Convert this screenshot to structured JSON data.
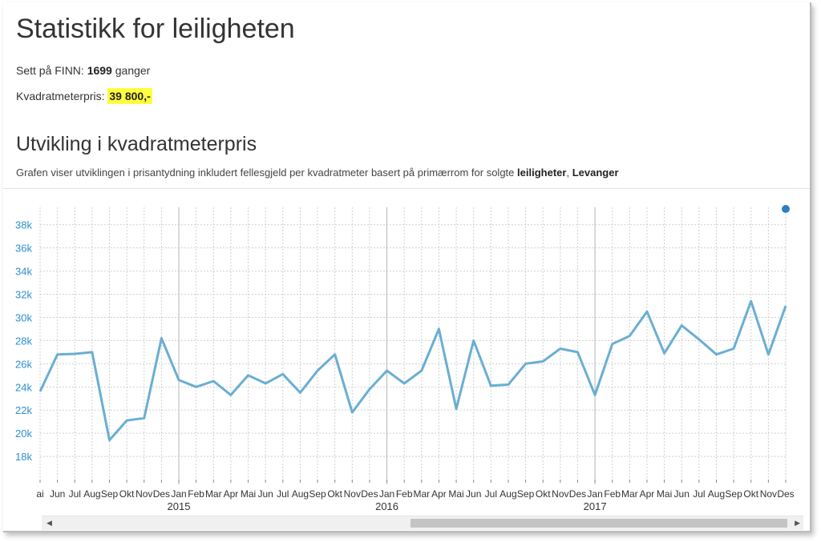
{
  "page": {
    "title": "Statistikk for leiligheten",
    "views_label": "Sett på FINN:",
    "views_count": "1699",
    "views_suffix": "ganger",
    "price_label": "Kvadratmeterpris:",
    "price_value": "39 800,-"
  },
  "section": {
    "title": "Utvikling i kvadratmeterpris",
    "desc_prefix": "Grafen viser utviklingen i prisantydning inkludert fellesgjeld per kvadratmeter basert på primærrom for solgte",
    "desc_type": "leiligheter",
    "desc_sep": ",",
    "desc_place": "Levanger"
  },
  "chart_data": {
    "type": "line",
    "categories": [
      "Mai",
      "Jun",
      "Jul",
      "Aug",
      "Sep",
      "Okt",
      "Nov",
      "Des",
      "Jan",
      "Feb",
      "Mar",
      "Apr",
      "Mai",
      "Jun",
      "Jul",
      "Aug",
      "Sep",
      "Okt",
      "Nov",
      "Des",
      "Jan",
      "Feb",
      "Mar",
      "Apr",
      "Mai",
      "Jun",
      "Jul",
      "Aug",
      "Sep",
      "Okt",
      "Nov",
      "Des",
      "Jan",
      "Feb",
      "Mar",
      "Apr",
      "Mai",
      "Jun",
      "Jul",
      "Aug",
      "Sep",
      "Okt",
      "Nov",
      "Des"
    ],
    "category_labels": [
      "ai",
      "Jun",
      "Jul",
      "Aug",
      "Sep",
      "Okt",
      "Nov",
      "Des",
      "Jan",
      "Feb",
      "Mar",
      "Apr",
      "Mai",
      "Jun",
      "Jul",
      "Aug",
      "Sep",
      "Okt",
      "Nov",
      "Des",
      "Jan",
      "Feb",
      "Mar",
      "Apr",
      "Mai",
      "Jun",
      "Jul",
      "Aug",
      "Sep",
      "Okt",
      "Nov",
      "Des",
      "Jan",
      "Feb",
      "Mar",
      "Apr",
      "Mai",
      "Jun",
      "Jul",
      "Aug",
      "Sep",
      "Okt",
      "Nov",
      "Des"
    ],
    "year_labels": [
      {
        "label": "2015",
        "index": 8
      },
      {
        "label": "2016",
        "index": 20
      },
      {
        "label": "2017",
        "index": 32
      }
    ],
    "values": [
      23600,
      26800,
      26850,
      27000,
      19400,
      21100,
      21300,
      28200,
      24600,
      24000,
      24500,
      23300,
      25000,
      24300,
      25100,
      23500,
      25400,
      26800,
      21800,
      23800,
      25400,
      24300,
      25400,
      29000,
      22100,
      28000,
      24100,
      24200,
      26000,
      26200,
      27300,
      27000,
      23300,
      27700,
      28400,
      30500,
      26900,
      29300,
      28100,
      26800,
      27300,
      31400,
      26800,
      31000
    ],
    "y_ticks": [
      "18k",
      "20k",
      "22k",
      "24k",
      "26k",
      "28k",
      "30k",
      "32k",
      "34k",
      "36k",
      "38k"
    ],
    "ylim": [
      16000,
      39500
    ],
    "grid": true,
    "colors": {
      "line": "#6aaed3",
      "axis_text": "#2e8fd0",
      "grid": "#cfcfcf",
      "year_line": "#b8b8b8",
      "dot": "#2e7fc0"
    }
  }
}
